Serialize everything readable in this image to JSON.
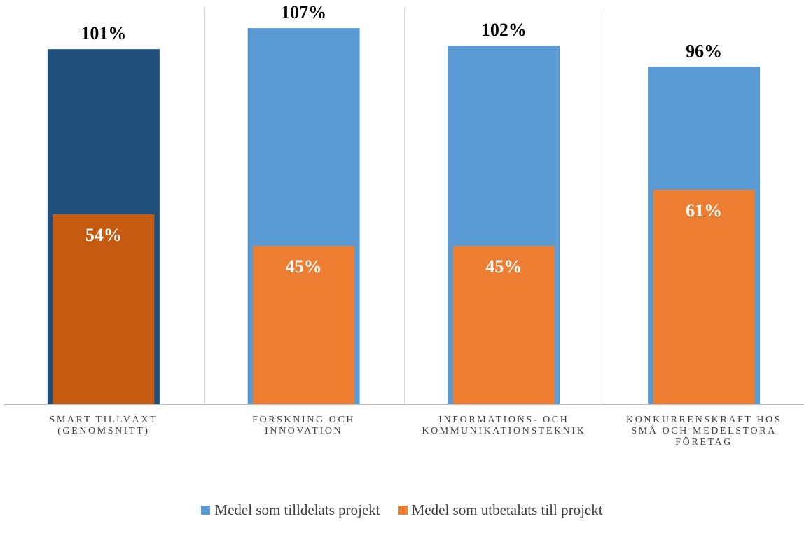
{
  "chart_data": {
    "type": "bar",
    "categories": [
      [
        "SMART TILLVÄXT",
        "(GENOMSNITT)"
      ],
      [
        "FORSKNING OCH",
        "INNOVATION"
      ],
      [
        "INFORMATIONS- OCH",
        "KOMMUNIKATIONSTEKNIK"
      ],
      [
        "KONKURRENSKRAFT HOS",
        "SMÅ OCH MEDELSTORA",
        "FÖRETAG"
      ]
    ],
    "series": [
      {
        "name": "Medel som tilldelats projekt",
        "values": [
          101,
          107,
          102,
          96
        ],
        "labels": [
          "101%",
          "107%",
          "102%",
          "96%"
        ],
        "color": "#5B9BD5",
        "highlight_color": "#1F4E79"
      },
      {
        "name": "Medel som utbetalats till projekt",
        "values": [
          54,
          45,
          45,
          61
        ],
        "labels": [
          "54%",
          "45%",
          "45%",
          "61%"
        ],
        "color": "#ED7D31",
        "highlight_color": "#C55A11"
      }
    ],
    "highlight_index": 0,
    "ylim": [
      0,
      113
    ],
    "grid": false,
    "separators": true,
    "legend_position": "bottom",
    "overlap": true
  }
}
